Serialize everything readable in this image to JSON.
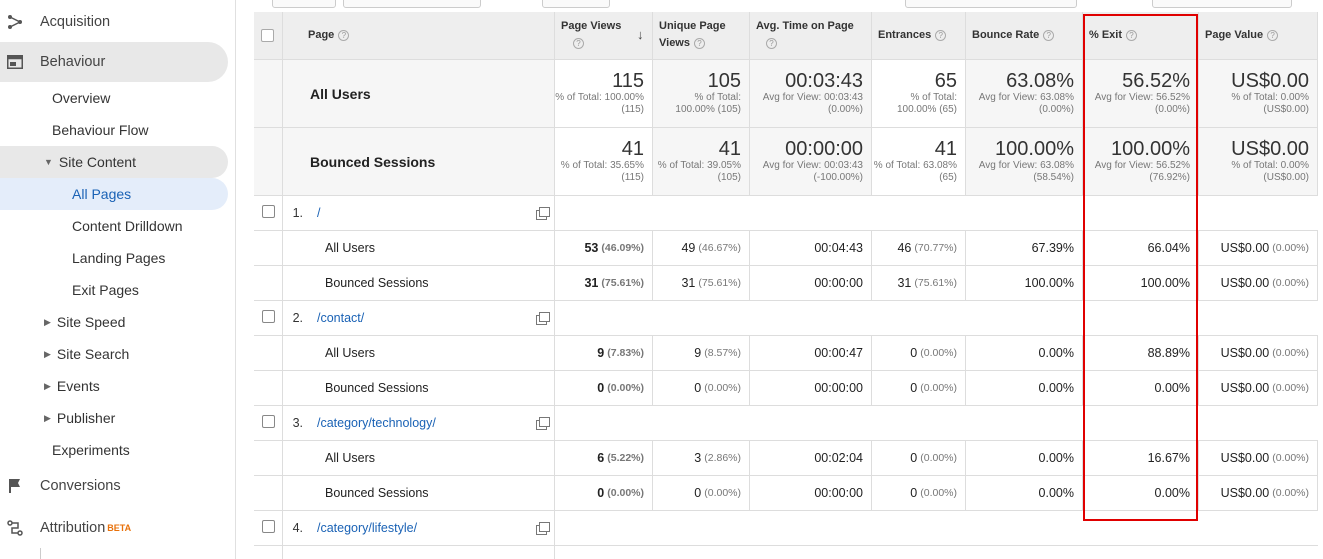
{
  "sidebar": {
    "acquisition": "Acquisition",
    "behaviour": "Behaviour",
    "overview": "Overview",
    "behaviour_flow": "Behaviour Flow",
    "site_content": "Site Content",
    "all_pages": "All Pages",
    "content_drilldown": "Content Drilldown",
    "landing_pages": "Landing Pages",
    "exit_pages": "Exit Pages",
    "site_speed": "Site Speed",
    "site_search": "Site Search",
    "events": "Events",
    "publisher": "Publisher",
    "experiments": "Experiments",
    "conversions": "Conversions",
    "attribution": "Attribution",
    "attribution_badge": "BETA"
  },
  "table": {
    "headers": {
      "page": "Page",
      "page_views": "Page Views",
      "unique_page_views": "Unique Page Views",
      "avg_time": "Avg. Time on Page",
      "entrances": "Entrances",
      "bounce_rate": "Bounce Rate",
      "exit": "% Exit",
      "page_value": "Page Value"
    },
    "summary": [
      {
        "segment": "All Users",
        "page_views": {
          "value": "115",
          "sub": "% of Total: 100.00% (115)"
        },
        "unique_page_views": {
          "value": "105",
          "sub": "% of Total: 100.00% (105)"
        },
        "avg_time": {
          "value": "00:03:43",
          "sub": "Avg for View: 00:03:43 (0.00%)"
        },
        "entrances": {
          "value": "65",
          "sub": "% of Total: 100.00% (65)"
        },
        "bounce_rate": {
          "value": "63.08%",
          "sub": "Avg for View: 63.08% (0.00%)"
        },
        "exit": {
          "value": "56.52%",
          "sub": "Avg for View: 56.52% (0.00%)"
        },
        "page_value": {
          "value": "US$0.00",
          "sub": "% of Total: 0.00% (US$0.00)"
        }
      },
      {
        "segment": "Bounced Sessions",
        "page_views": {
          "value": "41",
          "sub": "% of Total: 35.65% (115)"
        },
        "unique_page_views": {
          "value": "41",
          "sub": "% of Total: 39.05% (105)"
        },
        "avg_time": {
          "value": "00:00:00",
          "sub": "Avg for View: 00:03:43 (-100.00%)"
        },
        "entrances": {
          "value": "41",
          "sub": "% of Total: 63.08% (65)"
        },
        "bounce_rate": {
          "value": "100.00%",
          "sub": "Avg for View: 63.08% (58.54%)"
        },
        "exit": {
          "value": "100.00%",
          "sub": "Avg for View: 56.52% (76.92%)"
        },
        "page_value": {
          "value": "US$0.00",
          "sub": "% of Total: 0.00% (US$0.00)"
        }
      }
    ],
    "pages": [
      {
        "num": "1.",
        "path": "/",
        "rows": [
          {
            "segment": "All Users",
            "pv": "53",
            "pv_pct": "(46.09%)",
            "upv": "49",
            "upv_pct": "(46.67%)",
            "time": "00:04:43",
            "ent": "46",
            "ent_pct": "(70.77%)",
            "br": "67.39%",
            "exit": "66.04%",
            "val": "US$0.00",
            "val_pct": "(0.00%)"
          },
          {
            "segment": "Bounced Sessions",
            "pv": "31",
            "pv_pct": "(75.61%)",
            "upv": "31",
            "upv_pct": "(75.61%)",
            "time": "00:00:00",
            "ent": "31",
            "ent_pct": "(75.61%)",
            "br": "100.00%",
            "exit": "100.00%",
            "val": "US$0.00",
            "val_pct": "(0.00%)"
          }
        ]
      },
      {
        "num": "2.",
        "path": "/contact/",
        "rows": [
          {
            "segment": "All Users",
            "pv": "9",
            "pv_pct": "(7.83%)",
            "upv": "9",
            "upv_pct": "(8.57%)",
            "time": "00:00:47",
            "ent": "0",
            "ent_pct": "(0.00%)",
            "br": "0.00%",
            "exit": "88.89%",
            "val": "US$0.00",
            "val_pct": "(0.00%)"
          },
          {
            "segment": "Bounced Sessions",
            "pv": "0",
            "pv_pct": "(0.00%)",
            "upv": "0",
            "upv_pct": "(0.00%)",
            "time": "00:00:00",
            "ent": "0",
            "ent_pct": "(0.00%)",
            "br": "0.00%",
            "exit": "0.00%",
            "val": "US$0.00",
            "val_pct": "(0.00%)"
          }
        ]
      },
      {
        "num": "3.",
        "path": "/category/technology/",
        "rows": [
          {
            "segment": "All Users",
            "pv": "6",
            "pv_pct": "(5.22%)",
            "upv": "3",
            "upv_pct": "(2.86%)",
            "time": "00:02:04",
            "ent": "0",
            "ent_pct": "(0.00%)",
            "br": "0.00%",
            "exit": "16.67%",
            "val": "US$0.00",
            "val_pct": "(0.00%)"
          },
          {
            "segment": "Bounced Sessions",
            "pv": "0",
            "pv_pct": "(0.00%)",
            "upv": "0",
            "upv_pct": "(0.00%)",
            "time": "00:00:00",
            "ent": "0",
            "ent_pct": "(0.00%)",
            "br": "0.00%",
            "exit": "0.00%",
            "val": "US$0.00",
            "val_pct": "(0.00%)"
          }
        ]
      },
      {
        "num": "4.",
        "path": "/category/lifestyle/",
        "rows": []
      }
    ]
  },
  "colors": {
    "accent": "#1a62b5",
    "highlight": "#e00000",
    "beta": "#e8710a"
  }
}
